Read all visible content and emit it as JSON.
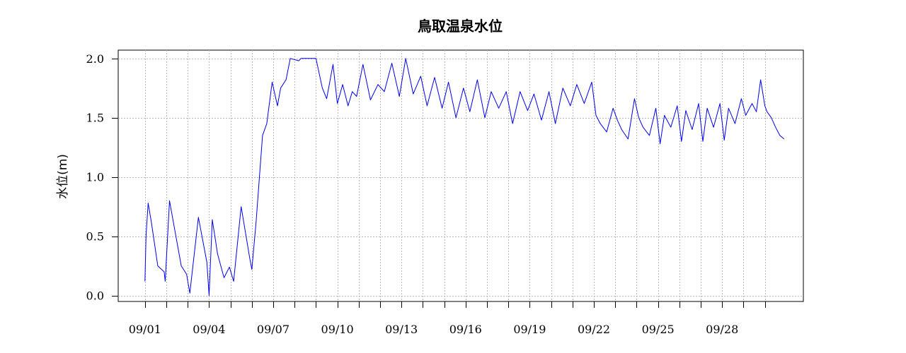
{
  "chart_data": {
    "type": "line",
    "title": "鳥取温泉水位",
    "xlabel": "",
    "ylabel": "水位(m)",
    "ylim": [
      -0.05,
      2.07
    ],
    "xlim": [
      -1.25,
      30.8
    ],
    "grid": true,
    "legend": "none",
    "series_color": "#0000ee",
    "y_ticks": [
      0.0,
      0.5,
      1.0,
      1.5,
      2.0
    ],
    "y_tick_labels": [
      "0.0",
      "0.5",
      "1.0",
      "1.5",
      "2.0"
    ],
    "x_ticks": [
      0,
      1,
      2,
      3,
      4,
      5,
      6,
      7,
      8,
      9,
      10,
      11,
      12,
      13,
      14,
      15,
      16,
      17,
      18,
      19,
      20,
      21,
      22,
      23,
      24,
      25,
      26,
      27,
      28,
      29
    ],
    "x_tick_labels": [
      {
        "day": 0,
        "label": "09/01"
      },
      {
        "day": 3,
        "label": "09/04"
      },
      {
        "day": 6,
        "label": "09/07"
      },
      {
        "day": 9,
        "label": "09/10"
      },
      {
        "day": 12,
        "label": "09/13"
      },
      {
        "day": 15,
        "label": "09/16"
      },
      {
        "day": 18,
        "label": "09/19"
      },
      {
        "day": 21,
        "label": "09/22"
      },
      {
        "day": 24,
        "label": "09/25"
      },
      {
        "day": 27,
        "label": "09/28"
      }
    ],
    "series": [
      {
        "x": [
          0.0,
          0.05,
          0.15,
          0.3,
          0.6,
          0.9,
          0.95,
          1.15,
          1.4,
          1.7,
          1.95,
          2.1,
          2.5,
          2.9,
          3.0,
          3.15,
          3.4,
          3.7,
          3.95,
          4.15,
          4.5,
          4.9,
          5.0,
          5.2,
          5.5,
          5.7,
          5.95,
          6.2,
          6.35,
          6.6,
          6.8,
          7.2,
          7.3,
          7.4,
          7.7,
          8.0,
          8.3,
          8.5,
          8.8,
          9.0,
          9.25,
          9.5,
          9.7,
          9.9,
          10.2,
          10.55,
          10.9,
          11.2,
          11.55,
          11.9,
          12.2,
          12.55,
          12.9,
          13.2,
          13.55,
          13.9,
          14.2,
          14.55,
          14.9,
          15.2,
          15.55,
          15.9,
          16.2,
          16.55,
          16.9,
          17.2,
          17.55,
          17.9,
          18.2,
          18.55,
          18.9,
          19.2,
          19.55,
          19.9,
          20.2,
          20.55,
          20.9,
          21.1,
          21.3,
          21.6,
          21.9,
          22.1,
          22.3,
          22.6,
          22.9,
          23.1,
          23.3,
          23.6,
          23.9,
          24.1,
          24.3,
          24.6,
          24.9,
          25.1,
          25.3,
          25.6,
          25.9,
          26.1,
          26.3,
          26.6,
          26.9,
          27.1,
          27.3,
          27.6,
          27.9,
          28.1,
          28.4,
          28.6,
          28.8,
          29.0,
          29.1,
          29.3,
          29.5,
          29.7,
          29.9
        ],
        "y": [
          0.12,
          0.5,
          0.78,
          0.62,
          0.25,
          0.2,
          0.12,
          0.8,
          0.55,
          0.25,
          0.18,
          0.02,
          0.66,
          0.28,
          0.0,
          0.64,
          0.35,
          0.15,
          0.24,
          0.12,
          0.75,
          0.32,
          0.22,
          0.62,
          1.35,
          1.45,
          1.8,
          1.6,
          1.75,
          1.82,
          2.0,
          1.98,
          2.0,
          2.0,
          2.0,
          2.0,
          1.75,
          1.66,
          1.95,
          1.62,
          1.78,
          1.6,
          1.72,
          1.68,
          1.95,
          1.65,
          1.78,
          1.72,
          1.96,
          1.68,
          2.0,
          1.7,
          1.85,
          1.6,
          1.84,
          1.58,
          1.8,
          1.5,
          1.75,
          1.55,
          1.82,
          1.5,
          1.72,
          1.58,
          1.72,
          1.45,
          1.72,
          1.56,
          1.7,
          1.48,
          1.72,
          1.45,
          1.75,
          1.6,
          1.78,
          1.62,
          1.8,
          1.52,
          1.45,
          1.38,
          1.58,
          1.48,
          1.4,
          1.32,
          1.66,
          1.5,
          1.42,
          1.35,
          1.58,
          1.28,
          1.52,
          1.42,
          1.6,
          1.3,
          1.56,
          1.4,
          1.62,
          1.3,
          1.58,
          1.42,
          1.62,
          1.31,
          1.58,
          1.45,
          1.66,
          1.52,
          1.62,
          1.55,
          1.82,
          1.6,
          1.55,
          1.5,
          1.42,
          1.35,
          1.32
        ]
      }
    ]
  }
}
